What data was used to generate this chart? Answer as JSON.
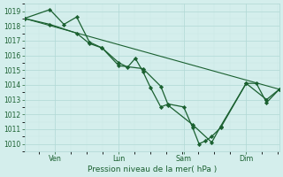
{
  "xlabel": "Pression niveau de la mer( hPa )",
  "background_color": "#d4eeec",
  "grid_major_color": "#b0d8d4",
  "grid_minor_color": "#c8e8e5",
  "line_color": "#1a6030",
  "text_color": "#1a6030",
  "ylim": [
    1009.5,
    1019.5
  ],
  "yticks": [
    1010,
    1011,
    1012,
    1013,
    1014,
    1015,
    1016,
    1017,
    1018,
    1019
  ],
  "xlim": [
    0.0,
    1.0
  ],
  "x_tick_positions": [
    0.12,
    0.37,
    0.625,
    0.87
  ],
  "x_tick_labels": [
    "Ven",
    "Lun",
    "Sam",
    "Dim"
  ],
  "series": [
    {
      "x": [
        0.0,
        0.1,
        0.155,
        0.205,
        0.255,
        0.305,
        0.37,
        0.405,
        0.435,
        0.465,
        0.495,
        0.535,
        0.565,
        0.625,
        0.66,
        0.685,
        0.71,
        0.735,
        0.77,
        0.87,
        0.91,
        0.95,
        1.0
      ],
      "y": [
        1018.5,
        1019.1,
        1018.1,
        1018.6,
        1016.9,
        1016.5,
        1015.5,
        1015.2,
        1015.8,
        1014.9,
        1013.8,
        1012.5,
        1012.7,
        1012.5,
        1011.1,
        1010.0,
        1010.2,
        1010.5,
        1011.1,
        1014.1,
        1014.1,
        1012.8,
        1013.7
      ],
      "marker": "D",
      "lw": 0.9
    },
    {
      "x": [
        0.0,
        0.1,
        0.205,
        0.255,
        0.305,
        0.37,
        0.465,
        0.535,
        0.565,
        0.66,
        0.735,
        0.77,
        0.87,
        0.95,
        1.0
      ],
      "y": [
        1018.5,
        1018.1,
        1017.5,
        1016.8,
        1016.5,
        1015.3,
        1015.1,
        1013.9,
        1012.6,
        1011.3,
        1010.1,
        1011.2,
        1014.1,
        1013.0,
        1013.7
      ],
      "marker": "D",
      "lw": 0.9
    },
    {
      "x": [
        0.0,
        1.0
      ],
      "y": [
        1018.5,
        1013.7
      ],
      "marker": null,
      "lw": 0.8
    }
  ]
}
